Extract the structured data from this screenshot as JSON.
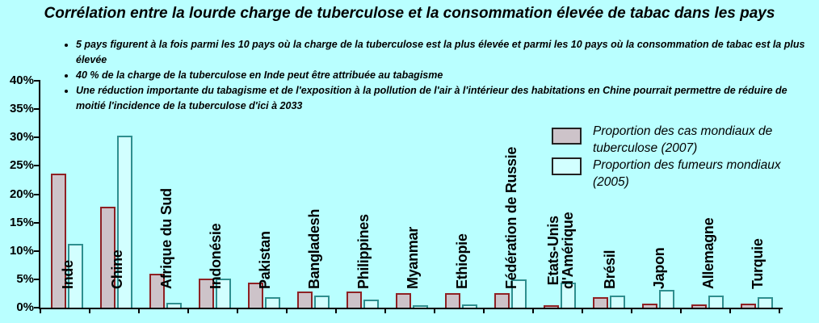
{
  "title": "Corrélation entre la lourde charge de tuberculose et la consommation élevée de tabac dans les pays",
  "bullets": [
    "5 pays figurent à la fois parmi les 10 pays où la charge de la tuberculose est la plus élevée et parmi les 10 pays où la consommation de tabac est la plus élevée",
    "40 % de la charge de la tuberculose en Inde peut être attribuée au tabagisme",
    "Une réduction importante du tabagisme et de l'exposition à la pollution de l'air à l'intérieur des habitations en Chine pourrait permettre de réduire de moitié l'incidence de la tuberculose d'ici à 2033"
  ],
  "chart_data": {
    "type": "bar",
    "categories": [
      "Inde",
      "Chine",
      "Afrique du Sud",
      "Indonésie",
      "Pakistan",
      "Bangladesh",
      "Philippines",
      "Myanmar",
      "Ethiopie",
      "Fédération de Russie",
      "Etats-Unis d'Amérique",
      "Brésil",
      "Japon",
      "Allemagne",
      "Turquie"
    ],
    "category_lines": [
      [
        "Inde"
      ],
      [
        "Chine"
      ],
      [
        "Afrique du Sud"
      ],
      [
        "Indonésie"
      ],
      [
        "Pakistan"
      ],
      [
        "Bangladesh"
      ],
      [
        "Philippines"
      ],
      [
        "Myanmar"
      ],
      [
        "Ethiopie"
      ],
      [
        "Fédération de Russie"
      ],
      [
        "Etats-Unis",
        "d'Amérique"
      ],
      [
        "Brésil"
      ],
      [
        "Japon"
      ],
      [
        "Allemagne"
      ],
      [
        "Turquie"
      ]
    ],
    "series": [
      {
        "name": "Proportion des cas mondiaux de tuberculose (2007)",
        "values": [
          23.3,
          17.5,
          5.7,
          4.9,
          4.1,
          2.6,
          2.6,
          2.3,
          2.3,
          2.3,
          0.2,
          1.6,
          0.5,
          0.3,
          0.5
        ]
      },
      {
        "name": "Proportion des fumeurs mondiaux (2005)",
        "values": [
          11,
          30,
          0.6,
          4.8,
          1.5,
          1.8,
          1.2,
          0.2,
          0.3,
          4.7,
          4.2,
          1.9,
          2.8,
          1.9,
          1.6
        ]
      }
    ],
    "xlabel": "",
    "ylabel": "",
    "ylim": [
      0,
      40
    ],
    "y_tick_labels": [
      "0%",
      "5%",
      "10%",
      "15%",
      "20%",
      "25%",
      "30%",
      "35%",
      "40%"
    ],
    "grid": false,
    "legend_position": "inside-upper-right"
  },
  "legend": {
    "items": [
      {
        "swatch": "tuberculose",
        "label_lines": [
          "Proportion des cas mondiaux de",
          "tuberculose (2007)"
        ]
      },
      {
        "swatch": "fumeurs",
        "label_lines": [
          "Proportion des fumeurs mondiaux (2005)"
        ]
      }
    ]
  },
  "colors": {
    "background": "#b9ffff",
    "tb_fill": "#cdc3c9",
    "tb_border": "#8e2124",
    "smoker_fill": "#d2ffff",
    "smoker_border": "#2f8f8f",
    "axis": "#000000",
    "legend_swatch_border": "#222222",
    "text": "#000000"
  }
}
